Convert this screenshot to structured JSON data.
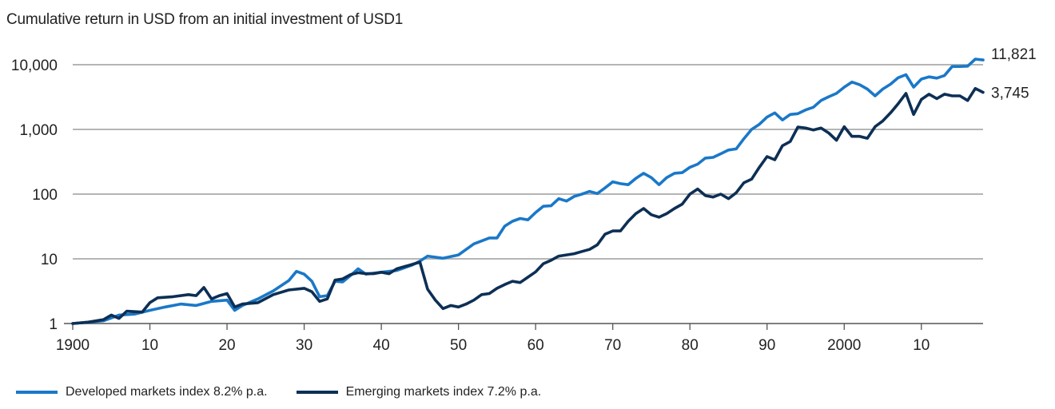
{
  "chart_data": {
    "type": "line",
    "title": "Cumulative return in USD from an initial investment of USD1",
    "y_scale": "log",
    "ylim": [
      1,
      20000
    ],
    "y_ticks": [
      1,
      10,
      100,
      1000,
      10000
    ],
    "y_tick_labels": [
      "1",
      "10",
      "100",
      "1,000",
      "10,000"
    ],
    "xlim": [
      1900,
      2018
    ],
    "x_ticks": [
      1900,
      1910,
      1920,
      1930,
      1940,
      1950,
      1960,
      1970,
      1980,
      1990,
      2000,
      2010
    ],
    "x_tick_labels": [
      "1900",
      "10",
      "20",
      "30",
      "40",
      "50",
      "60",
      "70",
      "80",
      "90",
      "2000",
      "10"
    ],
    "grid": "horizontal",
    "legend_position": "bottom",
    "series": [
      {
        "name": "Developed markets index 8.2% p.a.",
        "color": "#1a78c8",
        "end_label": "11,821",
        "points": [
          [
            1900,
            1
          ],
          [
            1902,
            1.05
          ],
          [
            1904,
            1.1
          ],
          [
            1906,
            1.35
          ],
          [
            1908,
            1.4
          ],
          [
            1910,
            1.6
          ],
          [
            1912,
            1.8
          ],
          [
            1914,
            2.0
          ],
          [
            1916,
            1.9
          ],
          [
            1918,
            2.2
          ],
          [
            1920,
            2.3
          ],
          [
            1921,
            1.6
          ],
          [
            1922,
            1.9
          ],
          [
            1924,
            2.4
          ],
          [
            1926,
            3.2
          ],
          [
            1928,
            4.6
          ],
          [
            1929,
            6.4
          ],
          [
            1930,
            5.8
          ],
          [
            1931,
            4.5
          ],
          [
            1932,
            2.6
          ],
          [
            1933,
            2.7
          ],
          [
            1934,
            4.5
          ],
          [
            1935,
            4.4
          ],
          [
            1936,
            5.5
          ],
          [
            1937,
            7.0
          ],
          [
            1938,
            5.8
          ],
          [
            1940,
            6.2
          ],
          [
            1942,
            6.6
          ],
          [
            1944,
            8.0
          ],
          [
            1945,
            9.2
          ],
          [
            1946,
            11
          ],
          [
            1948,
            10.2
          ],
          [
            1950,
            11.5
          ],
          [
            1952,
            17
          ],
          [
            1954,
            21
          ],
          [
            1955,
            21
          ],
          [
            1956,
            32
          ],
          [
            1957,
            38
          ],
          [
            1958,
            42
          ],
          [
            1959,
            40
          ],
          [
            1960,
            52
          ],
          [
            1961,
            65
          ],
          [
            1962,
            66
          ],
          [
            1963,
            85
          ],
          [
            1964,
            78
          ],
          [
            1965,
            92
          ],
          [
            1966,
            100
          ],
          [
            1967,
            110
          ],
          [
            1968,
            102
          ],
          [
            1969,
            125
          ],
          [
            1970,
            155
          ],
          [
            1971,
            145
          ],
          [
            1972,
            140
          ],
          [
            1973,
            175
          ],
          [
            1974,
            210
          ],
          [
            1975,
            180
          ],
          [
            1976,
            140
          ],
          [
            1977,
            180
          ],
          [
            1978,
            210
          ],
          [
            1979,
            215
          ],
          [
            1980,
            260
          ],
          [
            1981,
            290
          ],
          [
            1982,
            360
          ],
          [
            1983,
            370
          ],
          [
            1984,
            420
          ],
          [
            1985,
            480
          ],
          [
            1986,
            500
          ],
          [
            1987,
            720
          ],
          [
            1988,
            1000
          ],
          [
            1989,
            1200
          ],
          [
            1990,
            1550
          ],
          [
            1991,
            1800
          ],
          [
            1992,
            1400
          ],
          [
            1993,
            1700
          ],
          [
            1994,
            1750
          ],
          [
            1995,
            2000
          ],
          [
            1996,
            2200
          ],
          [
            1997,
            2800
          ],
          [
            1998,
            3200
          ],
          [
            1999,
            3600
          ],
          [
            2000,
            4500
          ],
          [
            2001,
            5400
          ],
          [
            2002,
            4900
          ],
          [
            2003,
            4200
          ],
          [
            2004,
            3300
          ],
          [
            2005,
            4200
          ],
          [
            2006,
            5000
          ],
          [
            2007,
            6300
          ],
          [
            2008,
            7000
          ],
          [
            2009,
            4500
          ],
          [
            2010,
            6000
          ],
          [
            2011,
            6500
          ],
          [
            2012,
            6200
          ],
          [
            2013,
            6800
          ],
          [
            2014,
            9400
          ],
          [
            2015,
            9400
          ],
          [
            2016,
            9500
          ],
          [
            2017,
            12200
          ],
          [
            2018,
            11821
          ]
        ]
      },
      {
        "name": "Emerging markets index 7.2% p.a.",
        "color": "#0d2f55",
        "end_label": "3,745",
        "points": [
          [
            1900,
            1
          ],
          [
            1902,
            1.05
          ],
          [
            1904,
            1.15
          ],
          [
            1905,
            1.35
          ],
          [
            1906,
            1.2
          ],
          [
            1907,
            1.55
          ],
          [
            1909,
            1.5
          ],
          [
            1910,
            2.1
          ],
          [
            1911,
            2.5
          ],
          [
            1913,
            2.6
          ],
          [
            1915,
            2.8
          ],
          [
            1916,
            2.7
          ],
          [
            1917,
            3.6
          ],
          [
            1918,
            2.4
          ],
          [
            1919,
            2.7
          ],
          [
            1920,
            2.9
          ],
          [
            1921,
            1.8
          ],
          [
            1922,
            2.0
          ],
          [
            1924,
            2.1
          ],
          [
            1926,
            2.8
          ],
          [
            1928,
            3.3
          ],
          [
            1930,
            3.5
          ],
          [
            1931,
            3.1
          ],
          [
            1932,
            2.2
          ],
          [
            1933,
            2.4
          ],
          [
            1934,
            4.7
          ],
          [
            1935,
            4.9
          ],
          [
            1936,
            5.7
          ],
          [
            1937,
            6.1
          ],
          [
            1938,
            5.9
          ],
          [
            1939,
            5.9
          ],
          [
            1940,
            6.2
          ],
          [
            1941,
            5.9
          ],
          [
            1942,
            7.0
          ],
          [
            1944,
            8.2
          ],
          [
            1945,
            8.9
          ],
          [
            1946,
            3.4
          ],
          [
            1947,
            2.3
          ],
          [
            1948,
            1.7
          ],
          [
            1949,
            1.9
          ],
          [
            1950,
            1.8
          ],
          [
            1951,
            2.0
          ],
          [
            1952,
            2.3
          ],
          [
            1953,
            2.8
          ],
          [
            1954,
            2.9
          ],
          [
            1955,
            3.5
          ],
          [
            1956,
            4.0
          ],
          [
            1957,
            4.5
          ],
          [
            1958,
            4.3
          ],
          [
            1959,
            5.2
          ],
          [
            1960,
            6.3
          ],
          [
            1961,
            8.4
          ],
          [
            1962,
            9.5
          ],
          [
            1963,
            11
          ],
          [
            1964,
            11.5
          ],
          [
            1965,
            12
          ],
          [
            1966,
            13
          ],
          [
            1967,
            14
          ],
          [
            1968,
            16.5
          ],
          [
            1969,
            24
          ],
          [
            1970,
            27
          ],
          [
            1971,
            27
          ],
          [
            1972,
            38
          ],
          [
            1973,
            50
          ],
          [
            1974,
            60
          ],
          [
            1975,
            48
          ],
          [
            1976,
            44
          ],
          [
            1977,
            50
          ],
          [
            1978,
            60
          ],
          [
            1979,
            70
          ],
          [
            1980,
            100
          ],
          [
            1981,
            120
          ],
          [
            1982,
            95
          ],
          [
            1983,
            90
          ],
          [
            1984,
            100
          ],
          [
            1985,
            85
          ],
          [
            1986,
            105
          ],
          [
            1987,
            150
          ],
          [
            1988,
            170
          ],
          [
            1989,
            260
          ],
          [
            1990,
            380
          ],
          [
            1991,
            340
          ],
          [
            1992,
            560
          ],
          [
            1993,
            650
          ],
          [
            1994,
            1090
          ],
          [
            1995,
            1050
          ],
          [
            1996,
            980
          ],
          [
            1997,
            1050
          ],
          [
            1998,
            880
          ],
          [
            1999,
            680
          ],
          [
            2000,
            1100
          ],
          [
            2001,
            780
          ],
          [
            2002,
            780
          ],
          [
            2003,
            730
          ],
          [
            2004,
            1100
          ],
          [
            2005,
            1350
          ],
          [
            2006,
            1800
          ],
          [
            2007,
            2500
          ],
          [
            2008,
            3600
          ],
          [
            2009,
            1700
          ],
          [
            2010,
            2900
          ],
          [
            2011,
            3500
          ],
          [
            2012,
            3000
          ],
          [
            2013,
            3500
          ],
          [
            2014,
            3300
          ],
          [
            2015,
            3300
          ],
          [
            2016,
            2800
          ],
          [
            2017,
            4300
          ],
          [
            2018,
            3745
          ]
        ]
      }
    ]
  }
}
